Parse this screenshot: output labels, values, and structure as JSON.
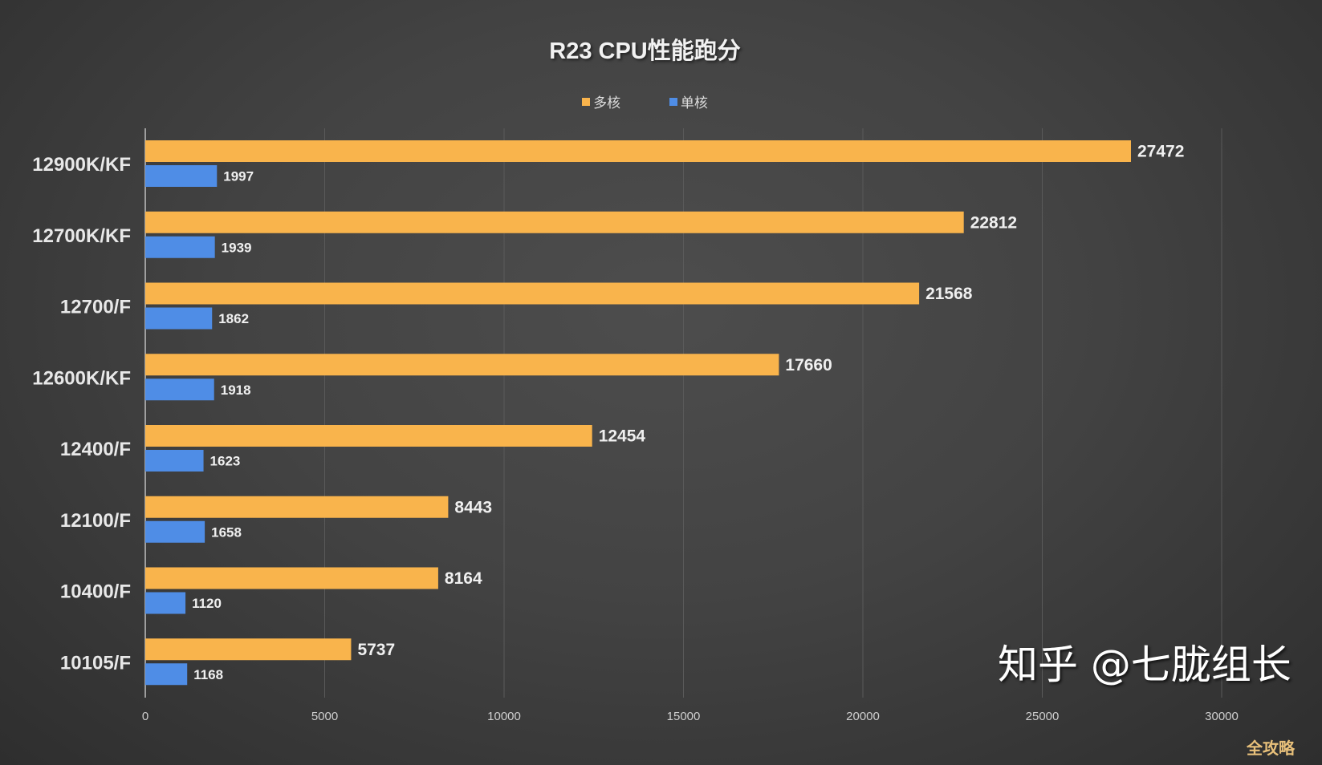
{
  "chart_data": {
    "type": "bar",
    "orientation": "horizontal",
    "title": "R23 CPU性能跑分",
    "categories": [
      "12900K/KF",
      "12700K/KF",
      "12700/F",
      "12600K/KF",
      "12400/F",
      "12100/F",
      "10400/F",
      "10105/F"
    ],
    "series": [
      {
        "name": "多核",
        "color": "#f9b44c",
        "values": [
          27472,
          22812,
          21568,
          17660,
          12454,
          8443,
          8164,
          5737
        ]
      },
      {
        "name": "单核",
        "color": "#4f8de6",
        "values": [
          1997,
          1939,
          1862,
          1918,
          1623,
          1658,
          1120,
          1168
        ]
      }
    ],
    "xlim": [
      0,
      30000
    ],
    "xticks": [
      "0",
      "5000",
      "10000",
      "15000",
      "20000",
      "25000",
      "30000"
    ],
    "grid": true,
    "legend": "top-center"
  },
  "watermark": "知乎 @七胧组长",
  "corner_logo": "全攻略"
}
